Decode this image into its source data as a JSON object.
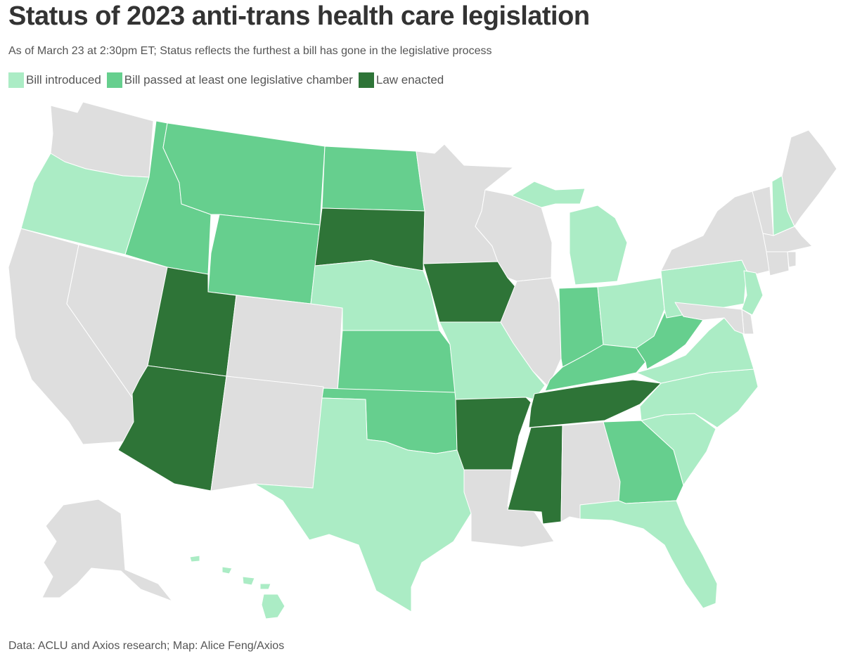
{
  "header": {
    "title": "Status of 2023 anti-trans health care legislation",
    "subtitle": "As of March 23 at 2:30pm ET; Status reflects the furthest a bill has gone in the legislative process"
  },
  "legend": [
    {
      "label": "Bill introduced",
      "color": "#abecc5"
    },
    {
      "label": "Bill passed at least one legislative chamber",
      "color": "#66cf8e"
    },
    {
      "label": "Law enacted",
      "color": "#2e7437"
    }
  ],
  "colors": {
    "none": "#dedede",
    "introduced": "#abecc5",
    "passed": "#66cf8e",
    "enacted": "#2e7437"
  },
  "states": {
    "WA": "none",
    "OR": "introduced",
    "CA": "none",
    "NV": "none",
    "ID": "passed",
    "MT": "passed",
    "WY": "passed",
    "UT": "enacted",
    "AZ": "enacted",
    "CO": "none",
    "NM": "none",
    "ND": "passed",
    "SD": "enacted",
    "NE": "introduced",
    "KS": "passed",
    "OK": "passed",
    "TX": "introduced",
    "MN": "none",
    "IA": "enacted",
    "MO": "introduced",
    "AR": "enacted",
    "LA": "none",
    "WI": "none",
    "IL": "none",
    "MI": "introduced",
    "IN": "passed",
    "OH": "introduced",
    "KY": "passed",
    "TN": "enacted",
    "MS": "enacted",
    "AL": "none",
    "GA": "passed",
    "FL": "introduced",
    "SC": "introduced",
    "NC": "introduced",
    "VA": "introduced",
    "WV": "passed",
    "PA": "introduced",
    "NY": "none",
    "VT": "none",
    "NH": "introduced",
    "ME": "none",
    "MA": "none",
    "CT": "none",
    "RI": "none",
    "NJ": "introduced",
    "DE": "none",
    "MD": "none",
    "AK": "none",
    "HI": "introduced"
  },
  "footer": {
    "source": "Data: ACLU and Axios research; Map: Alice Feng/Axios"
  }
}
